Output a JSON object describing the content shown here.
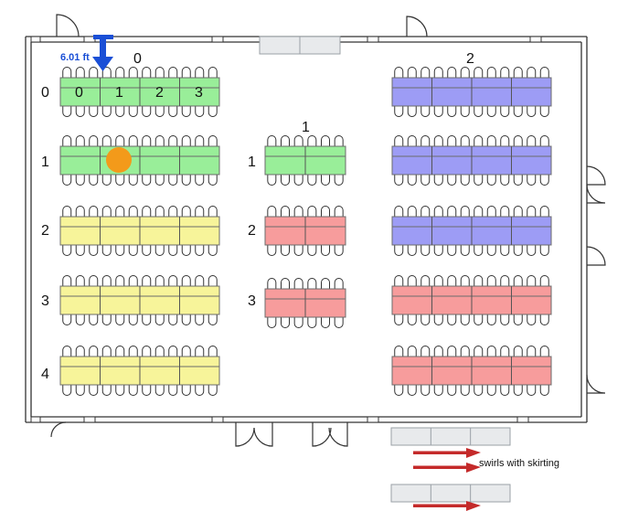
{
  "measurement": {
    "text": "6.01 ft"
  },
  "groups": [
    {
      "label": "0",
      "row_labels": [
        "0",
        "1",
        "2",
        "3",
        "4"
      ],
      "column_labels": [
        "0",
        "1",
        "2",
        "3"
      ]
    },
    {
      "label": "1",
      "row_labels": [
        "1",
        "2",
        "3"
      ]
    },
    {
      "label": "2"
    }
  ],
  "legend": {
    "note": "swirls with skirting"
  },
  "colors": {
    "green": "#99ee99",
    "yellow": "#f7f49a",
    "red": "#f79c9c",
    "blue": "#9d9cf5",
    "marker": "#f39a1a",
    "arrow_blue": "#1a4fd6",
    "arrow_red": "#c42a2a",
    "wall": "#333333",
    "stage_gray": "#e8eaec"
  },
  "icons": [
    "door-icon",
    "chair-icon",
    "arrow-down-icon",
    "arrow-right-icon",
    "marker-dot-icon"
  ]
}
